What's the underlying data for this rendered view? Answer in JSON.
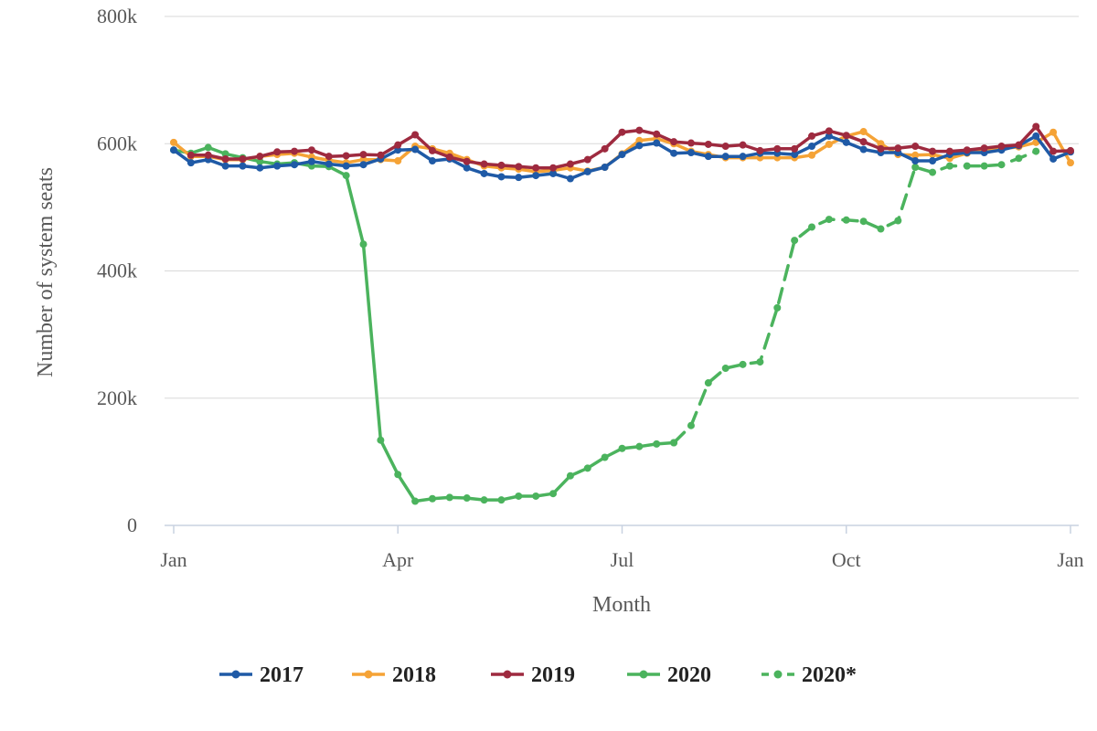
{
  "chart_data": {
    "type": "line",
    "title": "",
    "xlabel": "Month",
    "ylabel": "Number of system seats",
    "x_unit": "week of year",
    "xlim": [
      1,
      53
    ],
    "ylim": [
      0,
      800000
    ],
    "y_ticks": [
      {
        "value": 0,
        "label": "0"
      },
      {
        "value": 200000,
        "label": "200k"
      },
      {
        "value": 400000,
        "label": "400k"
      },
      {
        "value": 600000,
        "label": "600k"
      },
      {
        "value": 800000,
        "label": "800k"
      }
    ],
    "x_ticks": [
      {
        "value": 1,
        "label": "Jan"
      },
      {
        "value": 14,
        "label": "Apr"
      },
      {
        "value": 27,
        "label": "Jul"
      },
      {
        "value": 40,
        "label": "Oct"
      },
      {
        "value": 53,
        "label": "Jan"
      }
    ],
    "grid": "horizontal",
    "legend_position": "bottom",
    "series": [
      {
        "name": "2017",
        "color": "#1F5AA6",
        "dash": false,
        "x": [
          1,
          2,
          3,
          4,
          5,
          6,
          7,
          8,
          9,
          10,
          11,
          12,
          13,
          14,
          15,
          16,
          17,
          18,
          19,
          20,
          21,
          22,
          23,
          24,
          25,
          26,
          27,
          28,
          29,
          30,
          31,
          32,
          33,
          34,
          35,
          36,
          37,
          38,
          39,
          40,
          41,
          42,
          43,
          44,
          45,
          46,
          47,
          48,
          49,
          50,
          51,
          52,
          53
        ],
        "values": [
          590000,
          570000,
          575000,
          565000,
          565000,
          562000,
          565000,
          567000,
          572000,
          568000,
          565000,
          567000,
          576000,
          590000,
          591000,
          573000,
          576000,
          562000,
          553000,
          548000,
          547000,
          550000,
          553000,
          545000,
          556000,
          563000,
          583000,
          597000,
          601000,
          585000,
          586000,
          580000,
          580000,
          580000,
          585000,
          585000,
          583000,
          596000,
          612000,
          602000,
          591000,
          586000,
          586000,
          573000,
          573000,
          583000,
          586000,
          586000,
          590000,
          597000,
          612000,
          576000,
          587000
        ]
      },
      {
        "name": "2018",
        "color": "#F5A336",
        "dash": false,
        "x": [
          1,
          2,
          3,
          4,
          5,
          6,
          7,
          8,
          9,
          10,
          11,
          12,
          13,
          14,
          15,
          16,
          17,
          18,
          19,
          20,
          21,
          22,
          23,
          24,
          25,
          26,
          27,
          28,
          29,
          30,
          31,
          32,
          33,
          34,
          35,
          36,
          37,
          38,
          39,
          40,
          41,
          42,
          43,
          44,
          45,
          46,
          47,
          48,
          49,
          50,
          51,
          52,
          53
        ],
        "values": [
          602000,
          580000,
          580000,
          575000,
          575000,
          580000,
          583000,
          585000,
          579000,
          574000,
          570000,
          575000,
          575000,
          573000,
          596000,
          592000,
          585000,
          575000,
          565000,
          562000,
          560000,
          556000,
          558000,
          562000,
          557000,
          563000,
          584000,
          605000,
          608000,
          600000,
          588000,
          583000,
          578000,
          578000,
          578000,
          578000,
          578000,
          582000,
          599000,
          612000,
          619000,
          600000,
          583000,
          582000,
          583000,
          577000,
          585000,
          590000,
          592000,
          595000,
          602000,
          618000,
          570000
        ]
      },
      {
        "name": "2019",
        "color": "#9E2A3F",
        "dash": false,
        "x": [
          2,
          3,
          4,
          5,
          6,
          7,
          8,
          9,
          10,
          11,
          12,
          13,
          14,
          15,
          16,
          17,
          18,
          19,
          20,
          21,
          22,
          23,
          24,
          25,
          26,
          27,
          28,
          29,
          30,
          31,
          32,
          33,
          34,
          35,
          36,
          37,
          38,
          39,
          40,
          41,
          42,
          43,
          44,
          45,
          46,
          47,
          48,
          49,
          50,
          51,
          52,
          53
        ],
        "values": [
          582000,
          582000,
          576000,
          576000,
          580000,
          587000,
          588000,
          590000,
          580000,
          581000,
          583000,
          582000,
          598000,
          614000,
          589000,
          579000,
          572000,
          568000,
          566000,
          564000,
          562000,
          562000,
          568000,
          575000,
          592000,
          618000,
          621000,
          615000,
          603000,
          601000,
          599000,
          596000,
          598000,
          589000,
          592000,
          592000,
          612000,
          620000,
          613000,
          603000,
          592000,
          593000,
          596000,
          588000,
          588000,
          590000,
          593000,
          596000,
          598000,
          627000,
          588000,
          589000
        ]
      },
      {
        "name": "2020",
        "color": "#4BB35D",
        "dash": false,
        "x": [
          1,
          2,
          3,
          4,
          5,
          6,
          7,
          8,
          9,
          10,
          11,
          12,
          13,
          14,
          15,
          16,
          17,
          18,
          19,
          20,
          21,
          22,
          23,
          24,
          25,
          26,
          27,
          28,
          29,
          30
        ],
        "values": [
          590000,
          585000,
          594000,
          584000,
          578000,
          572000,
          568000,
          570000,
          565000,
          564000,
          550000,
          442000,
          134000,
          80000,
          38000,
          42000,
          44000,
          43000,
          40000,
          40000,
          46000,
          46000,
          50000,
          78000,
          90000,
          107000,
          121000,
          124000,
          128000,
          130000
        ]
      },
      {
        "name": "2020*",
        "color": "#4BB35D",
        "dash": true,
        "x": [
          30,
          31,
          32,
          33,
          34,
          35,
          36,
          37,
          38,
          39,
          40,
          41,
          42,
          43,
          44,
          45,
          46,
          47,
          48,
          49,
          50,
          51
        ],
        "values": [
          130000,
          157000,
          224000,
          247000,
          253000,
          257000,
          342000,
          448000,
          469000,
          481000,
          480000,
          478000,
          466000,
          479000,
          563000,
          555000,
          565000,
          565000,
          565000,
          567000,
          577000,
          588000
        ]
      }
    ]
  }
}
